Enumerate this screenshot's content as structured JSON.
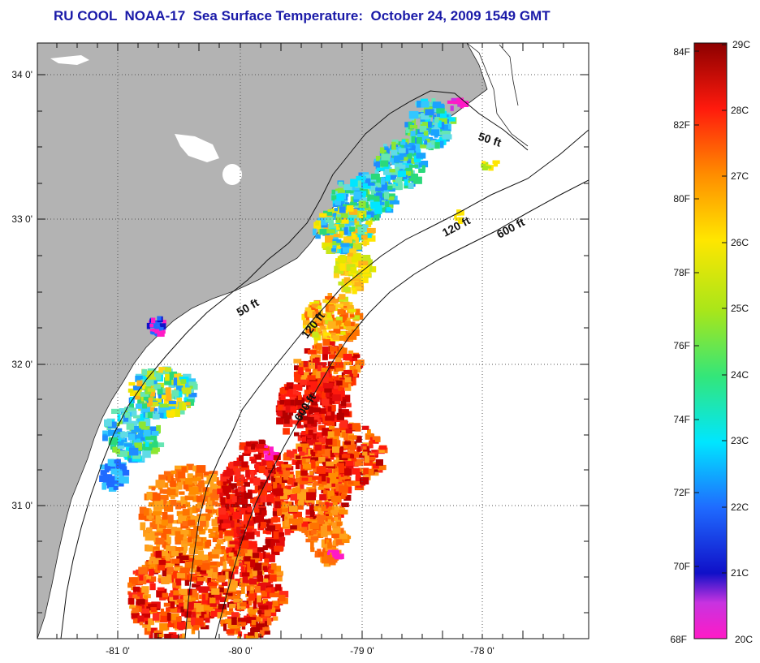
{
  "title": "RU COOL  NOAA-17  Sea Surface Temperature:  October 24, 2009 1549 GMT",
  "chart_data": {
    "type": "heatmap",
    "title": "RU COOL  NOAA-17  Sea Surface Temperature:  October 24, 2009 1549 GMT",
    "x_tick_labels": [
      "-81 0'",
      "-80 0'",
      "-79 0'",
      "-78 0'"
    ],
    "y_tick_labels": [
      "34 0'",
      "33 0'",
      "32 0'",
      "31 0'"
    ],
    "contour_labels": [
      "50 ft",
      "120 ft",
      "600 ft",
      "50 ft",
      "120 ft",
      "600 ft"
    ],
    "colorbar": {
      "fahrenheit_labels": [
        "84F",
        "82F",
        "80F",
        "78F",
        "76F",
        "74F",
        "72F",
        "70F",
        "68F"
      ],
      "celsius_labels": [
        "29C",
        "28C",
        "27C",
        "26C",
        "25C",
        "24C",
        "23C",
        "22C",
        "21C",
        "20C"
      ],
      "range_c": [
        20,
        29
      ],
      "range_f": [
        68,
        84.2
      ]
    },
    "colors": {
      "land": "#b3b3b3",
      "ocean": "#ffffff",
      "title": "#1a1aa8"
    }
  }
}
